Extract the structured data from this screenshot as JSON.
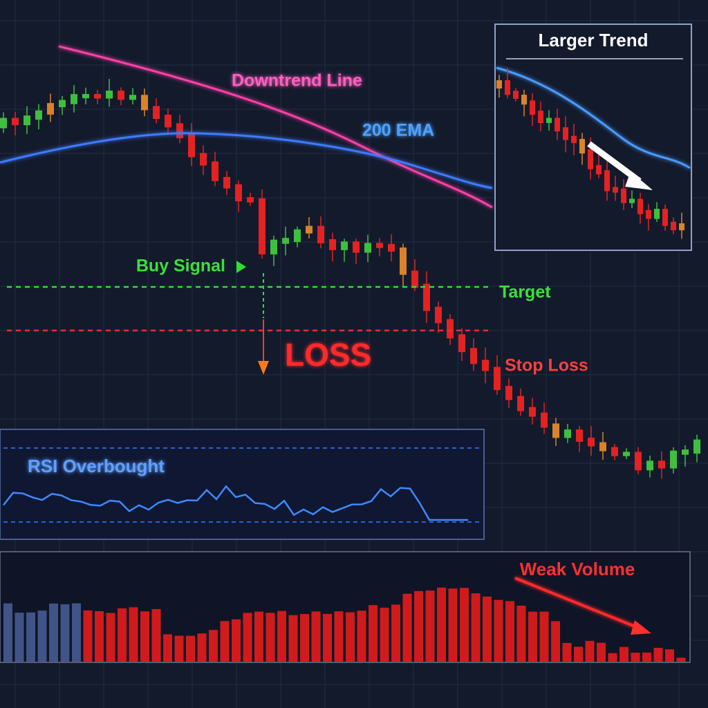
{
  "main_chart": {
    "annotations": {
      "downtrend_line": "Downtrend Line",
      "ema": "200 EMA",
      "buy_signal": "Buy Signal",
      "target": "Target",
      "loss": "LOSS",
      "stop_loss": "Stop Loss"
    }
  },
  "inset": {
    "title": "Larger Trend"
  },
  "rsi_panel": {
    "label": "RSI Overbought"
  },
  "volume_panel": {
    "label": "Weak Volume"
  }
}
